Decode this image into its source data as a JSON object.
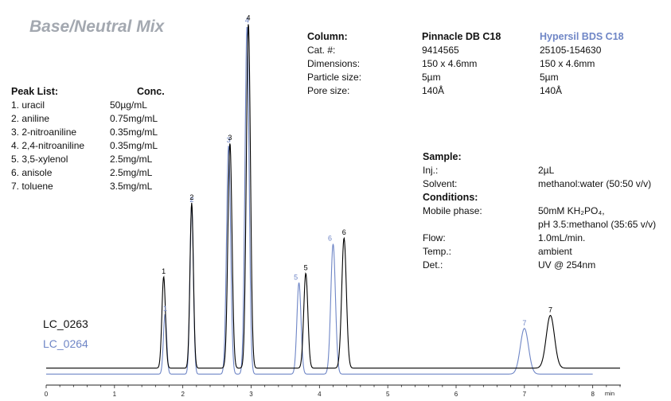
{
  "title": "Base/Neutral Mix",
  "peak_list": {
    "header_name": "Peak List:",
    "header_conc": "Conc.",
    "rows": [
      {
        "name": "1. uracil",
        "conc": "50µg/mL"
      },
      {
        "name": "2. aniline",
        "conc": "0.75mg/mL"
      },
      {
        "name": "3. 2-nitroaniline",
        "conc": "0.35mg/mL"
      },
      {
        "name": "4. 2,4-nitroaniline",
        "conc": "0.35mg/mL"
      },
      {
        "name": "5. 3,5-xylenol",
        "conc": "2.5mg/mL"
      },
      {
        "name": "6. anisole",
        "conc": "2.5mg/mL"
      },
      {
        "name": "7. toluene",
        "conc": "3.5mg/mL"
      }
    ]
  },
  "column_table": {
    "header": "Column:",
    "col1_name": "Pinnacle DB C18",
    "col2_name": "Hypersil BDS C18",
    "rows": [
      {
        "label": "Cat. #:",
        "v1": "9414565",
        "v2": "25105-154630"
      },
      {
        "label": "Dimensions:",
        "v1": "150 x 4.6mm",
        "v2": "150 x 4.6mm"
      },
      {
        "label": "Particle size:",
        "v1": "5µm",
        "v2": "5µm"
      },
      {
        "label": "Pore size:",
        "v1": "140Å",
        "v2": "140Å"
      }
    ]
  },
  "sample": {
    "header": "Sample:",
    "rows": [
      {
        "label": "Inj.:",
        "value": "2µL"
      },
      {
        "label": "Solvent:",
        "value": "methanol:water (50:50 v/v)"
      }
    ]
  },
  "conditions": {
    "header": "Conditions:",
    "mobile_label": "Mobile phase:",
    "mobile_value_1": "50mM KH₂PO₄,",
    "mobile_value_2": "pH 3.5:methanol (35:65 v/v)",
    "rows": [
      {
        "label": "Flow:",
        "value": "1.0mL/min."
      },
      {
        "label": "Temp.:",
        "value": "ambient"
      },
      {
        "label": "Det.:",
        "value": "UV @ 254nm"
      }
    ]
  },
  "chart_data": {
    "type": "line",
    "xlabel": "min",
    "xlim": [
      0,
      8.4
    ],
    "ylim": [
      0,
      100
    ],
    "x_ticks": [
      0,
      1,
      2,
      3,
      4,
      5,
      6,
      7,
      8
    ],
    "grid": false,
    "colors": {
      "LC_0263": "#000000",
      "LC_0264": "#6f86c6"
    },
    "series": [
      {
        "name": "LC_0263",
        "baseline": 1.2,
        "peaks": [
          {
            "label": "1",
            "x": 1.72,
            "height": 26,
            "width": 0.026
          },
          {
            "label": "2",
            "x": 2.13,
            "height": 47,
            "width": 0.025
          },
          {
            "label": "3",
            "x": 2.69,
            "height": 64,
            "width": 0.03
          },
          {
            "label": "4",
            "x": 2.96,
            "height": 98,
            "width": 0.03
          },
          {
            "label": "5",
            "x": 3.8,
            "height": 27,
            "width": 0.03
          },
          {
            "label": "6",
            "x": 4.36,
            "height": 37,
            "width": 0.034
          },
          {
            "label": "7",
            "x": 7.38,
            "height": 15,
            "width": 0.06
          }
        ]
      },
      {
        "name": "LC_0264",
        "baseline": -0.5,
        "peaks": [
          {
            "label": "1",
            "x": 1.74,
            "height": 17,
            "width": 0.024
          },
          {
            "label": "2",
            "x": 2.13,
            "height": 48,
            "width": 0.025
          },
          {
            "label": "3",
            "x": 2.67,
            "height": 65,
            "width": 0.03
          },
          {
            "label": "4",
            "x": 2.94,
            "height": 99,
            "width": 0.03
          },
          {
            "label": "5",
            "x": 3.7,
            "height": 26,
            "width": 0.03
          },
          {
            "label": "6",
            "x": 4.2,
            "height": 37,
            "width": 0.034
          },
          {
            "label": "7",
            "x": 7.0,
            "height": 13,
            "width": 0.06
          }
        ]
      }
    ]
  }
}
